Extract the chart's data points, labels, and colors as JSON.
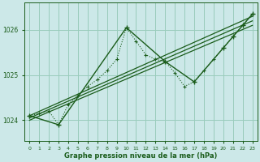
{
  "background_color": "#cce8e8",
  "grid_color": "#99ccbb",
  "line_color": "#1a5c1a",
  "xlabel": "Graphe pression niveau de la mer (hPa)",
  "xlabel_color": "#1a5c1a",
  "ylabel_ticks": [
    1024,
    1025,
    1026
  ],
  "xlim": [
    -0.5,
    23.5
  ],
  "ylim": [
    1023.55,
    1026.6
  ],
  "xticks": [
    0,
    1,
    2,
    3,
    4,
    5,
    6,
    7,
    8,
    9,
    10,
    11,
    12,
    13,
    14,
    15,
    16,
    17,
    18,
    19,
    20,
    21,
    22,
    23
  ],
  "all_x": [
    0,
    1,
    2,
    3,
    4,
    5,
    6,
    7,
    8,
    9,
    10,
    11,
    12,
    13,
    14,
    15,
    16,
    17,
    18,
    19,
    20,
    21,
    22,
    23
  ],
  "all_y": [
    1024.1,
    1024.15,
    1024.2,
    1023.9,
    1024.35,
    1024.55,
    1024.75,
    1024.9,
    1025.1,
    1025.35,
    1026.05,
    1025.75,
    1025.45,
    1025.35,
    1025.3,
    1025.05,
    1024.75,
    1024.85,
    1025.1,
    1025.35,
    1025.6,
    1025.85,
    1026.1,
    1026.35
  ],
  "jagged_x": [
    0,
    3,
    10,
    14,
    17,
    20,
    21,
    22,
    23
  ],
  "jagged_y": [
    1024.1,
    1023.9,
    1026.05,
    1025.3,
    1024.85,
    1025.6,
    1025.85,
    1026.1,
    1026.35
  ],
  "trend_lines": [
    {
      "x": [
        0,
        23
      ],
      "y": [
        1024.05,
        1026.2
      ]
    },
    {
      "x": [
        0,
        23
      ],
      "y": [
        1024.1,
        1026.3
      ]
    },
    {
      "x": [
        0,
        23
      ],
      "y": [
        1024.0,
        1026.1
      ]
    }
  ]
}
